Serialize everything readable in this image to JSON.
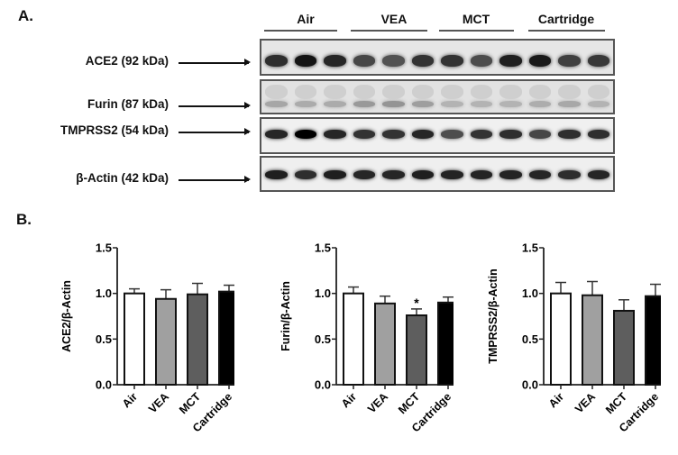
{
  "panel_a": {
    "letter": "A.",
    "groups": [
      "Air",
      "VEA",
      "MCT",
      "Cartridge"
    ],
    "rows": [
      {
        "label": "ACE2 (92 kDa)",
        "bg": "#e6e6e6",
        "bands": [
          0.82,
          0.92,
          0.85,
          0.72,
          0.68,
          0.8,
          0.8,
          0.7,
          0.88,
          0.9,
          0.75,
          0.78
        ]
      },
      {
        "label": "Furin (87 kDa)",
        "bg": "#e2e2e2",
        "bands": [
          0.35,
          0.33,
          0.33,
          0.4,
          0.42,
          0.38,
          0.3,
          0.3,
          0.3,
          0.32,
          0.34,
          0.3
        ]
      },
      {
        "label": "TMPRSS2 (54 kDa)",
        "bg": "#f0f0f0",
        "bands": [
          0.85,
          1.0,
          0.85,
          0.8,
          0.8,
          0.85,
          0.7,
          0.8,
          0.82,
          0.72,
          0.82,
          0.82
        ]
      },
      {
        "label": "β-Actin (42 kDa)",
        "bg": "#efefef",
        "bands": [
          0.88,
          0.82,
          0.88,
          0.85,
          0.85,
          0.88,
          0.86,
          0.86,
          0.86,
          0.85,
          0.82,
          0.85
        ]
      }
    ]
  },
  "panel_b": {
    "letter": "B."
  },
  "chart_data": [
    {
      "type": "bar",
      "title": "",
      "xlabel": "",
      "ylabel": "ACE2/β-Actin",
      "categories": [
        "Air",
        "VEA",
        "MCT",
        "Cartridge"
      ],
      "values": [
        1.0,
        0.94,
        0.99,
        1.02
      ],
      "errors": [
        0.05,
        0.1,
        0.12,
        0.07
      ],
      "annotations": [
        "",
        "",
        "",
        ""
      ],
      "ylim": [
        0,
        1.5
      ],
      "yticks": [
        "0.0",
        "0.5",
        "1.0",
        "1.5"
      ],
      "colors": [
        "#ffffff",
        "#a0a0a0",
        "#5e5e5e",
        "#000000"
      ],
      "grid": false,
      "legend": "none"
    },
    {
      "type": "bar",
      "title": "",
      "xlabel": "",
      "ylabel": "Furin/β-Actin",
      "categories": [
        "Air",
        "VEA",
        "MCT",
        "Cartridge"
      ],
      "values": [
        1.0,
        0.89,
        0.76,
        0.9
      ],
      "errors": [
        0.07,
        0.08,
        0.07,
        0.06
      ],
      "annotations": [
        "",
        "",
        "*",
        ""
      ],
      "ylim": [
        0,
        1.5
      ],
      "yticks": [
        "0.0",
        "0.5",
        "1.0",
        "1.5"
      ],
      "colors": [
        "#ffffff",
        "#a0a0a0",
        "#5e5e5e",
        "#000000"
      ],
      "grid": false,
      "legend": "none"
    },
    {
      "type": "bar",
      "title": "",
      "xlabel": "",
      "ylabel": "TMPRSS2/β-Actin",
      "categories": [
        "Air",
        "VEA",
        "MCT",
        "Cartridge"
      ],
      "values": [
        1.0,
        0.98,
        0.81,
        0.97
      ],
      "errors": [
        0.12,
        0.15,
        0.12,
        0.13
      ],
      "annotations": [
        "",
        "",
        "",
        ""
      ],
      "ylim": [
        0,
        1.5
      ],
      "yticks": [
        "0.0",
        "0.5",
        "1.0",
        "1.5"
      ],
      "colors": [
        "#ffffff",
        "#a0a0a0",
        "#5e5e5e",
        "#000000"
      ],
      "grid": false,
      "legend": "none"
    }
  ]
}
